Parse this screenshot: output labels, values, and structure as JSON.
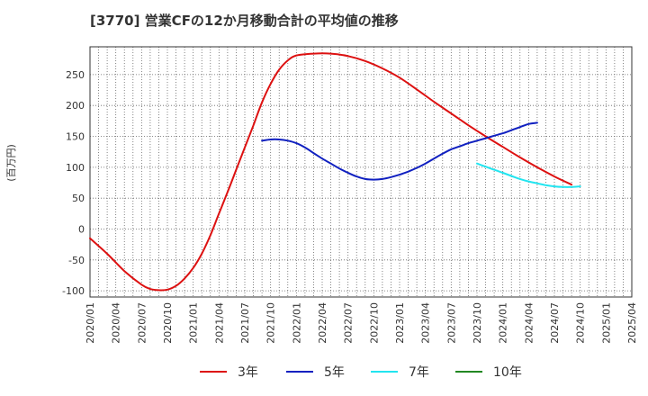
{
  "chart_data": {
    "type": "line",
    "title": "[3770]  営業CFの12か月移動合計の平均値の推移",
    "ylabel": "(百万円)",
    "xlabel": "",
    "ylim": [
      -110,
      295
    ],
    "y_ticks": [
      -100,
      -50,
      0,
      50,
      100,
      150,
      200,
      250
    ],
    "x_ticks": [
      "2020/01",
      "2020/04",
      "2020/07",
      "2020/10",
      "2021/01",
      "2021/04",
      "2021/07",
      "2021/10",
      "2022/01",
      "2022/04",
      "2022/07",
      "2022/10",
      "2023/01",
      "2023/04",
      "2023/07",
      "2023/10",
      "2024/01",
      "2024/04",
      "2024/07",
      "2024/10",
      "2025/01",
      "2025/04"
    ],
    "x_start": "2020/01",
    "x_end": "2025/04",
    "grid": true,
    "legend_position": "bottom",
    "series": [
      {
        "name": "3年",
        "color": "#dd1111",
        "points": [
          [
            "2020/01",
            -15
          ],
          [
            "2020/03",
            -40
          ],
          [
            "2020/05",
            -68
          ],
          [
            "2020/07",
            -90
          ],
          [
            "2020/08",
            -97
          ],
          [
            "2020/09",
            -99
          ],
          [
            "2020/10",
            -98
          ],
          [
            "2020/11",
            -92
          ],
          [
            "2020/12",
            -80
          ],
          [
            "2021/01",
            -63
          ],
          [
            "2021/02",
            -40
          ],
          [
            "2021/03",
            -10
          ],
          [
            "2021/04",
            25
          ],
          [
            "2021/05",
            60
          ],
          [
            "2021/06",
            96
          ],
          [
            "2021/07",
            132
          ],
          [
            "2021/08",
            168
          ],
          [
            "2021/09",
            205
          ],
          [
            "2021/10",
            235
          ],
          [
            "2021/11",
            258
          ],
          [
            "2021/12",
            273
          ],
          [
            "2022/01",
            281
          ],
          [
            "2022/03",
            284
          ],
          [
            "2022/05",
            284
          ],
          [
            "2022/07",
            280
          ],
          [
            "2022/09",
            272
          ],
          [
            "2022/11",
            260
          ],
          [
            "2023/01",
            245
          ],
          [
            "2023/03",
            226
          ],
          [
            "2023/05",
            206
          ],
          [
            "2023/07",
            187
          ],
          [
            "2023/09",
            168
          ],
          [
            "2023/11",
            150
          ],
          [
            "2024/01",
            133
          ],
          [
            "2024/03",
            116
          ],
          [
            "2024/05",
            100
          ],
          [
            "2024/07",
            85
          ],
          [
            "2024/09",
            72
          ]
        ]
      },
      {
        "name": "5年",
        "color": "#1020c0",
        "points": [
          [
            "2021/09",
            143
          ],
          [
            "2021/10",
            145
          ],
          [
            "2021/11",
            145
          ],
          [
            "2021/12",
            143
          ],
          [
            "2022/01",
            139
          ],
          [
            "2022/02",
            132
          ],
          [
            "2022/03",
            123
          ],
          [
            "2022/04",
            114
          ],
          [
            "2022/05",
            106
          ],
          [
            "2022/06",
            98
          ],
          [
            "2022/07",
            91
          ],
          [
            "2022/08",
            85
          ],
          [
            "2022/09",
            81
          ],
          [
            "2022/10",
            80
          ],
          [
            "2022/11",
            81
          ],
          [
            "2022/12",
            84
          ],
          [
            "2023/01",
            88
          ],
          [
            "2023/02",
            93
          ],
          [
            "2023/03",
            99
          ],
          [
            "2023/04",
            106
          ],
          [
            "2023/05",
            114
          ],
          [
            "2023/06",
            122
          ],
          [
            "2023/07",
            129
          ],
          [
            "2023/08",
            134
          ],
          [
            "2023/09",
            139
          ],
          [
            "2023/10",
            143
          ],
          [
            "2023/11",
            147
          ],
          [
            "2023/12",
            151
          ],
          [
            "2024/01",
            155
          ],
          [
            "2024/02",
            160
          ],
          [
            "2024/03",
            165
          ],
          [
            "2024/04",
            170
          ],
          [
            "2024/05",
            172
          ]
        ]
      },
      {
        "name": "7年",
        "color": "#22e5f0",
        "points": [
          [
            "2023/10",
            106
          ],
          [
            "2023/11",
            101
          ],
          [
            "2023/12",
            96
          ],
          [
            "2024/01",
            91
          ],
          [
            "2024/02",
            86
          ],
          [
            "2024/03",
            81
          ],
          [
            "2024/04",
            77
          ],
          [
            "2024/05",
            74
          ],
          [
            "2024/06",
            71
          ],
          [
            "2024/07",
            69
          ],
          [
            "2024/08",
            68
          ],
          [
            "2024/09",
            68
          ],
          [
            "2024/10",
            69
          ]
        ]
      },
      {
        "name": "10年",
        "color": "#228822",
        "points": []
      }
    ]
  }
}
